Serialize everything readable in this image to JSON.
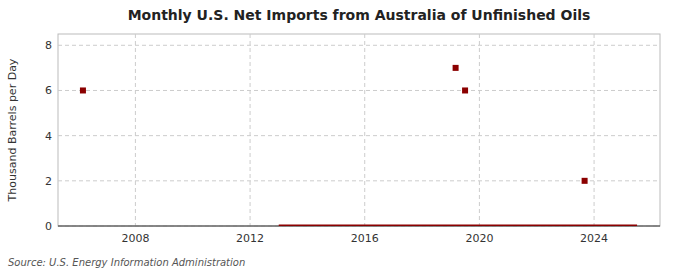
{
  "chart_data": {
    "type": "line",
    "title": "Monthly U.S. Net Imports from Australia of Unfinished Oils",
    "y_label": "Thousand Barrels per Day",
    "source": "Source: U.S. Energy Information Administration",
    "xlim": [
      2005.3,
      2026.3
    ],
    "xticks": [
      2008,
      2012,
      2016,
      2020,
      2024
    ],
    "ylim": [
      0,
      8.5
    ],
    "yticks": [
      0,
      2,
      4,
      6,
      8
    ],
    "grid": true,
    "series": [
      {
        "type": "line",
        "color": "#8b0000",
        "x": [
          2013.0,
          2025.5
        ],
        "values": [
          0.0,
          0.0
        ]
      },
      {
        "type": "scatter",
        "marker": "square",
        "color": "#8b0000",
        "x": [
          2006.17,
          2019.17,
          2019.5,
          2023.67
        ],
        "values": [
          6.0,
          7.0,
          6.0,
          2.0
        ]
      }
    ]
  }
}
